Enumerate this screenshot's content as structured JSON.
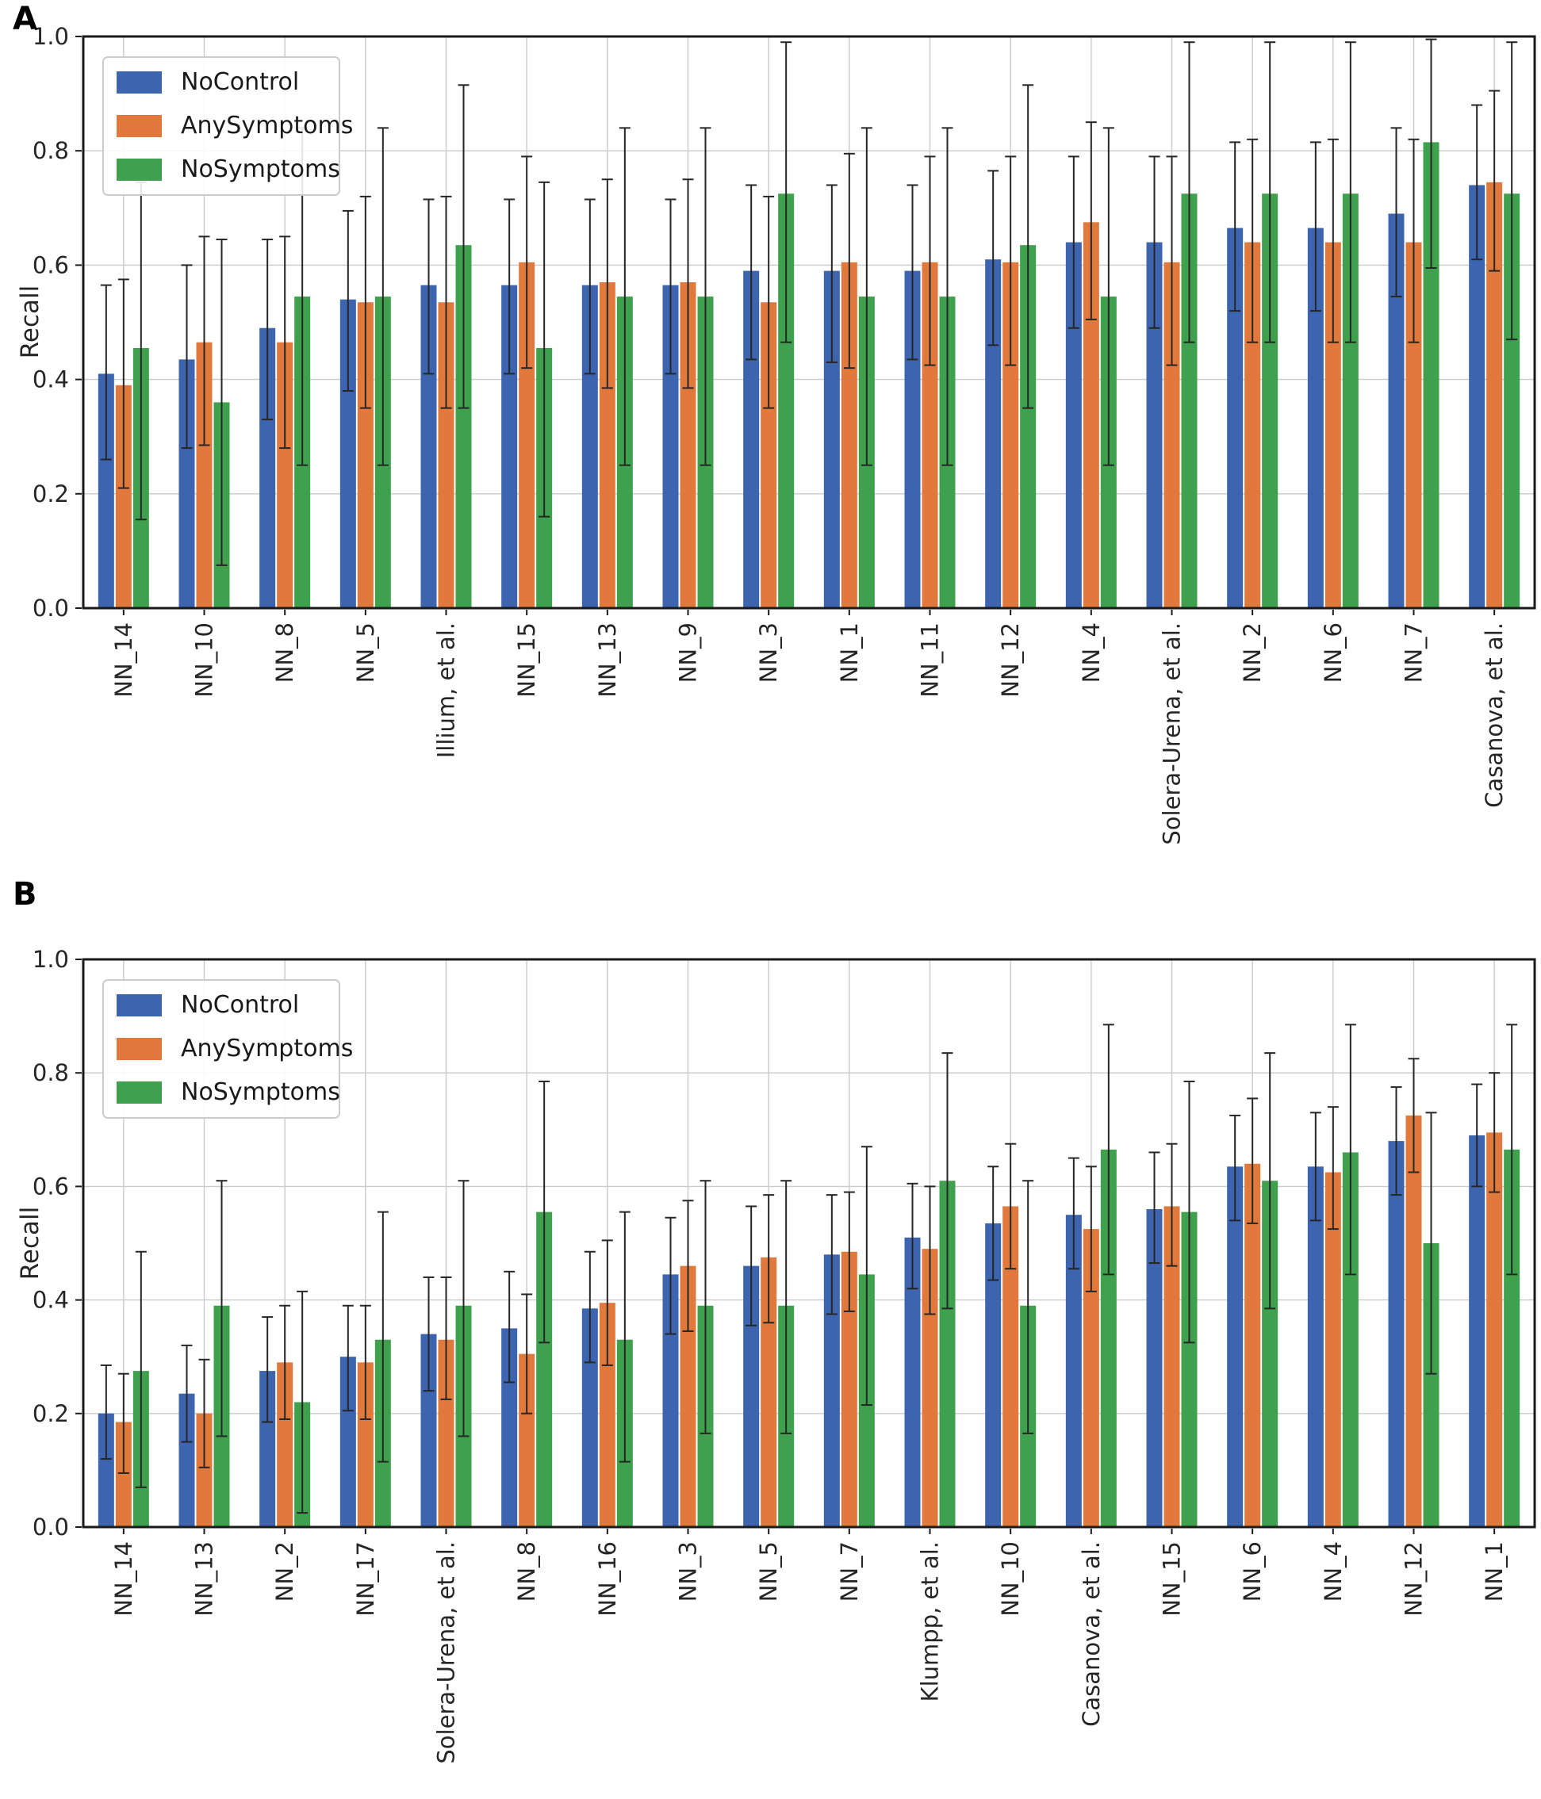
{
  "figure": {
    "panels": [
      {
        "marker": "A",
        "ylabel": "Recall"
      },
      {
        "marker": "B",
        "ylabel": "Recall"
      }
    ]
  },
  "legend": {
    "items": [
      "NoControl",
      "AnySymptoms",
      "NoSymptoms"
    ]
  },
  "colors": {
    "NoControl": "#3d64ae",
    "AnySymptoms": "#e0793b",
    "NoSymptoms": "#3fa04d",
    "error_bar": "#262626",
    "grid": "#cacaca",
    "axis": "#1a1a1a",
    "text": "#262626"
  },
  "axes": {
    "yticks": [
      "0.0",
      "0.2",
      "0.4",
      "0.6",
      "0.8",
      "1.0"
    ]
  },
  "chart_data": [
    {
      "type": "bar",
      "panel": "A",
      "ylabel": "Recall",
      "ylim": [
        0.0,
        1.0
      ],
      "grid": true,
      "legend_position": "upper left",
      "categories": [
        "NN_14",
        "NN_10",
        "NN_8",
        "NN_5",
        "Illium, et al.",
        "NN_15",
        "NN_13",
        "NN_9",
        "NN_3",
        "NN_1",
        "NN_11",
        "NN_12",
        "NN_4",
        "Solera-Urena, et al.",
        "NN_2",
        "NN_6",
        "NN_7",
        "Casanova, et al."
      ],
      "series": [
        {
          "name": "NoControl",
          "values": [
            0.41,
            0.435,
            0.49,
            0.54,
            0.565,
            0.565,
            0.565,
            0.565,
            0.59,
            0.59,
            0.59,
            0.61,
            0.64,
            0.64,
            0.665,
            0.665,
            0.69,
            0.74
          ],
          "err_lo": [
            0.26,
            0.28,
            0.33,
            0.38,
            0.41,
            0.41,
            0.41,
            0.41,
            0.435,
            0.43,
            0.435,
            0.46,
            0.49,
            0.49,
            0.52,
            0.52,
            0.545,
            0.61
          ],
          "err_hi": [
            0.565,
            0.6,
            0.645,
            0.695,
            0.715,
            0.715,
            0.715,
            0.715,
            0.74,
            0.74,
            0.74,
            0.765,
            0.79,
            0.79,
            0.815,
            0.815,
            0.84,
            0.88
          ]
        },
        {
          "name": "AnySymptoms",
          "values": [
            0.39,
            0.465,
            0.465,
            0.535,
            0.535,
            0.605,
            0.57,
            0.57,
            0.535,
            0.605,
            0.605,
            0.605,
            0.675,
            0.605,
            0.64,
            0.64,
            0.64,
            0.745
          ],
          "err_lo": [
            0.21,
            0.285,
            0.28,
            0.35,
            0.35,
            0.42,
            0.385,
            0.385,
            0.35,
            0.42,
            0.425,
            0.425,
            0.505,
            0.425,
            0.465,
            0.465,
            0.465,
            0.59
          ],
          "err_hi": [
            0.575,
            0.65,
            0.65,
            0.72,
            0.72,
            0.79,
            0.75,
            0.75,
            0.72,
            0.795,
            0.79,
            0.79,
            0.85,
            0.79,
            0.82,
            0.82,
            0.82,
            0.905
          ]
        },
        {
          "name": "NoSymptoms",
          "values": [
            0.455,
            0.36,
            0.545,
            0.545,
            0.635,
            0.455,
            0.545,
            0.545,
            0.725,
            0.545,
            0.545,
            0.635,
            0.545,
            0.725,
            0.725,
            0.725,
            0.815,
            0.725
          ],
          "err_lo": [
            0.155,
            0.075,
            0.25,
            0.25,
            0.35,
            0.16,
            0.25,
            0.25,
            0.465,
            0.25,
            0.25,
            0.35,
            0.25,
            0.465,
            0.465,
            0.465,
            0.595,
            0.47
          ],
          "err_hi": [
            0.745,
            0.645,
            0.84,
            0.84,
            0.915,
            0.745,
            0.84,
            0.84,
            0.99,
            0.84,
            0.84,
            0.915,
            0.84,
            0.99,
            0.99,
            0.99,
            0.995,
            0.99
          ]
        }
      ]
    },
    {
      "type": "bar",
      "panel": "B",
      "ylabel": "Recall",
      "ylim": [
        0.0,
        1.0
      ],
      "grid": true,
      "legend_position": "upper left",
      "categories": [
        "NN_14",
        "NN_13",
        "NN_2",
        "NN_17",
        "Solera-Urena, et al.",
        "NN_8",
        "NN_16",
        "NN_3",
        "NN_5",
        "NN_7",
        "Klumpp, et al.",
        "NN_10",
        "Casanova, et al.",
        "NN_15",
        "NN_6",
        "NN_4",
        "NN_12",
        "NN_1"
      ],
      "series": [
        {
          "name": "NoControl",
          "values": [
            0.2,
            0.235,
            0.275,
            0.3,
            0.34,
            0.35,
            0.385,
            0.445,
            0.46,
            0.48,
            0.51,
            0.535,
            0.55,
            0.56,
            0.635,
            0.635,
            0.68,
            0.69
          ],
          "err_lo": [
            0.12,
            0.15,
            0.185,
            0.205,
            0.24,
            0.255,
            0.29,
            0.34,
            0.355,
            0.375,
            0.42,
            0.435,
            0.455,
            0.465,
            0.54,
            0.54,
            0.585,
            0.6
          ],
          "err_hi": [
            0.285,
            0.32,
            0.37,
            0.39,
            0.44,
            0.45,
            0.485,
            0.545,
            0.565,
            0.585,
            0.605,
            0.635,
            0.65,
            0.66,
            0.725,
            0.73,
            0.775,
            0.78
          ]
        },
        {
          "name": "AnySymptoms",
          "values": [
            0.185,
            0.2,
            0.29,
            0.29,
            0.33,
            0.305,
            0.395,
            0.46,
            0.475,
            0.485,
            0.49,
            0.565,
            0.525,
            0.565,
            0.64,
            0.625,
            0.725,
            0.695
          ],
          "err_lo": [
            0.095,
            0.105,
            0.19,
            0.19,
            0.225,
            0.2,
            0.285,
            0.345,
            0.36,
            0.38,
            0.375,
            0.455,
            0.415,
            0.46,
            0.535,
            0.525,
            0.625,
            0.59
          ],
          "err_hi": [
            0.27,
            0.295,
            0.39,
            0.39,
            0.44,
            0.41,
            0.505,
            0.575,
            0.585,
            0.59,
            0.6,
            0.675,
            0.635,
            0.675,
            0.755,
            0.74,
            0.825,
            0.8
          ]
        },
        {
          "name": "NoSymptoms",
          "values": [
            0.275,
            0.39,
            0.22,
            0.33,
            0.39,
            0.555,
            0.33,
            0.39,
            0.39,
            0.445,
            0.61,
            0.39,
            0.665,
            0.555,
            0.61,
            0.66,
            0.5,
            0.665
          ],
          "err_lo": [
            0.07,
            0.16,
            0.025,
            0.115,
            0.16,
            0.325,
            0.115,
            0.165,
            0.165,
            0.215,
            0.385,
            0.165,
            0.445,
            0.325,
            0.385,
            0.445,
            0.27,
            0.445
          ],
          "err_hi": [
            0.485,
            0.61,
            0.415,
            0.555,
            0.61,
            0.785,
            0.555,
            0.61,
            0.61,
            0.67,
            0.835,
            0.61,
            0.885,
            0.785,
            0.835,
            0.885,
            0.73,
            0.885
          ]
        }
      ]
    }
  ]
}
